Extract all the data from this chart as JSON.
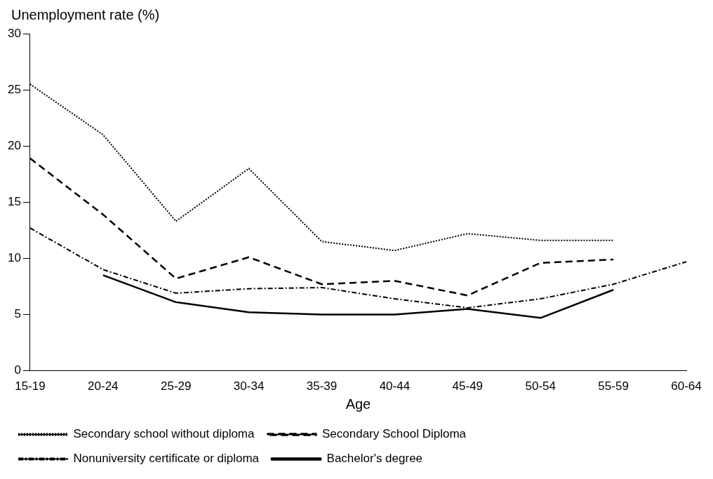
{
  "chart_data": {
    "type": "line",
    "ylabel": "Unemployment rate (%)",
    "xlabel": "Age",
    "categories": [
      "15-19",
      "20-24",
      "25-29",
      "30-34",
      "35-39",
      "40-44",
      "45-49",
      "50-54",
      "55-59",
      "60-64"
    ],
    "ylim": [
      0,
      30
    ],
    "yticks": [
      0,
      5,
      10,
      15,
      20,
      25,
      30
    ],
    "legend": "bottom",
    "marker": "none",
    "series": [
      {
        "name": "Secondary school without diploma",
        "color": "#000000",
        "line_style": "dotted",
        "values": [
          25.5,
          21.0,
          13.3,
          18.0,
          11.5,
          10.7,
          12.2,
          11.6,
          11.6,
          null
        ]
      },
      {
        "name": "Secondary School Diploma",
        "color": "#000000",
        "line_style": "dashed",
        "values": [
          18.9,
          13.9,
          8.2,
          10.1,
          7.7,
          8.0,
          6.7,
          9.6,
          9.9,
          null
        ]
      },
      {
        "name": "Nonuniversity certificate or diploma",
        "color": "#000000",
        "line_style": "dashdot",
        "values": [
          12.7,
          9.0,
          6.9,
          7.3,
          7.4,
          6.4,
          5.6,
          6.4,
          7.7,
          9.7
        ]
      },
      {
        "name": "Bachelor's degree",
        "color": "#000000",
        "line_style": "solid",
        "values": [
          null,
          8.5,
          6.1,
          5.2,
          5.0,
          5.0,
          5.5,
          4.7,
          7.2,
          null
        ]
      }
    ]
  }
}
